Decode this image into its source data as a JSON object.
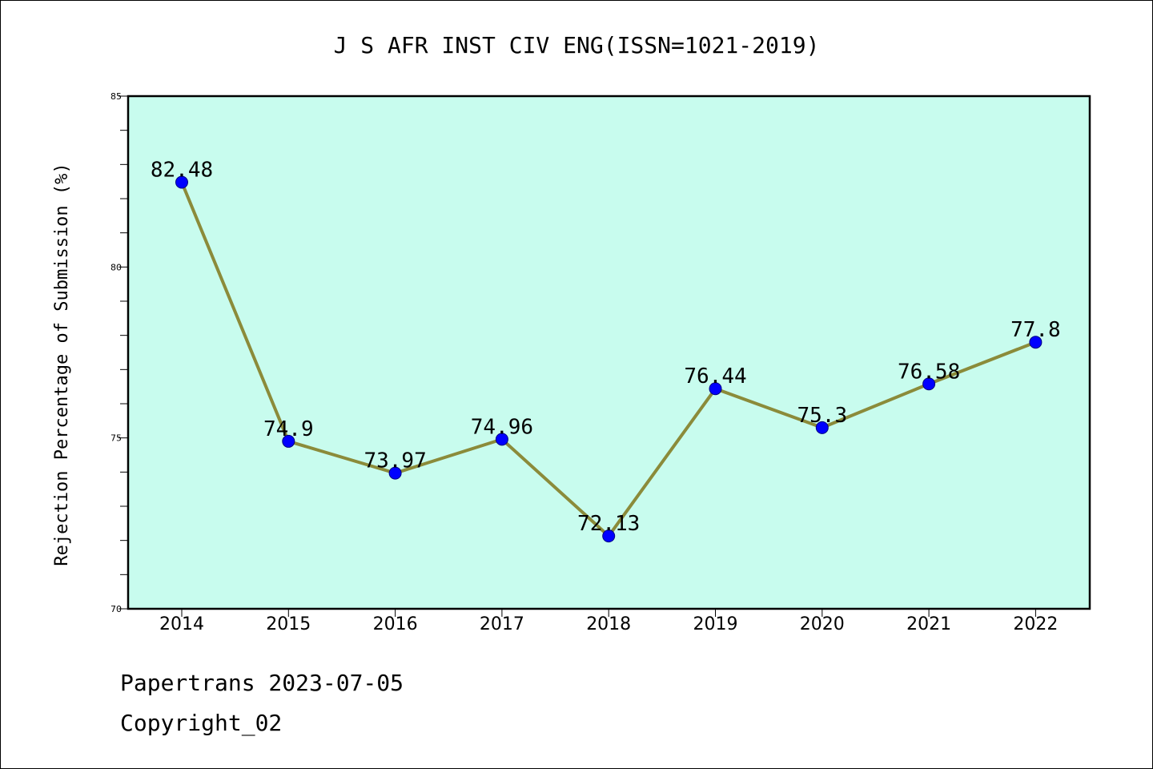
{
  "chart_data": {
    "type": "line",
    "title": "J S AFR INST CIV ENG(ISSN=1021-2019)",
    "xlabel": "",
    "ylabel": "Rejection Percentage of Submission (%)",
    "categories": [
      "2014",
      "2015",
      "2016",
      "2017",
      "2018",
      "2019",
      "2020",
      "2021",
      "2022"
    ],
    "values": [
      82.48,
      74.9,
      73.97,
      74.96,
      72.13,
      76.44,
      75.3,
      76.58,
      77.8
    ],
    "data_labels": [
      "82.48",
      "74.9",
      "73.97",
      "74.96",
      "72.13",
      "76.44",
      "75.3",
      "76.58",
      "77.8"
    ],
    "ylim": [
      70,
      85
    ],
    "yticks": [
      70,
      75,
      80,
      85
    ],
    "grid": false,
    "legend": "none",
    "colors": {
      "plot_background": "#c8fcee",
      "line": "#8b8b3a",
      "marker": "#0000ff",
      "marker_edge": "#000080"
    }
  },
  "footer": {
    "line1": "Papertrans 2023-07-05",
    "line2": "Copyright_02"
  }
}
